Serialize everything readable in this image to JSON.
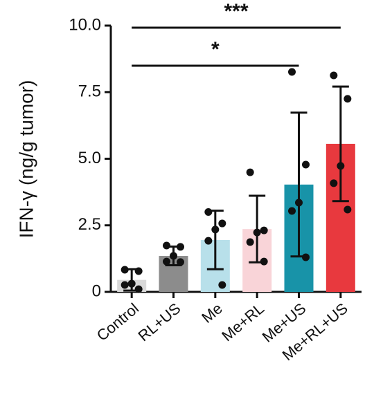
{
  "chart_data": {
    "type": "bar",
    "ylabel": "IFN-γ (ng/g tumor)",
    "categories": [
      "Control",
      "RL+US",
      "Me",
      "Me+RL",
      "Me+US",
      "Me+RL+US"
    ],
    "values": [
      0.45,
      1.35,
      1.95,
      2.36,
      4.03,
      5.56
    ],
    "errors": [
      0.4,
      0.35,
      1.1,
      1.25,
      2.7,
      2.15
    ],
    "colors": [
      "#d9d9d9",
      "#8c8c8c",
      "#b8e0ea",
      "#f9d4d8",
      "#1893a8",
      "#e8393e"
    ],
    "points": [
      [
        0.83,
        0.78,
        0.31,
        0.26,
        0.1
      ],
      [
        1.74,
        1.69,
        1.35,
        1.14,
        1.12
      ],
      [
        3.0,
        2.57,
        2.34,
        1.92,
        0.26
      ],
      [
        4.49,
        2.31,
        2.23,
        1.87,
        1.14
      ],
      [
        8.26,
        4.78,
        3.35,
        3.04,
        1.3
      ],
      [
        8.13,
        7.25,
        4.73,
        4.08,
        3.09
      ]
    ],
    "ylim": [
      0,
      10
    ],
    "yticks": [
      0,
      2.5,
      {
        "value": 5,
        "label": "5.0"
      },
      7.5,
      {
        "value": 10,
        "label": "10.0"
      }
    ],
    "annotations": [
      {
        "text": "***",
        "from": 0,
        "to": 5
      },
      {
        "text": "*",
        "from": 0,
        "to": 4
      }
    ]
  }
}
